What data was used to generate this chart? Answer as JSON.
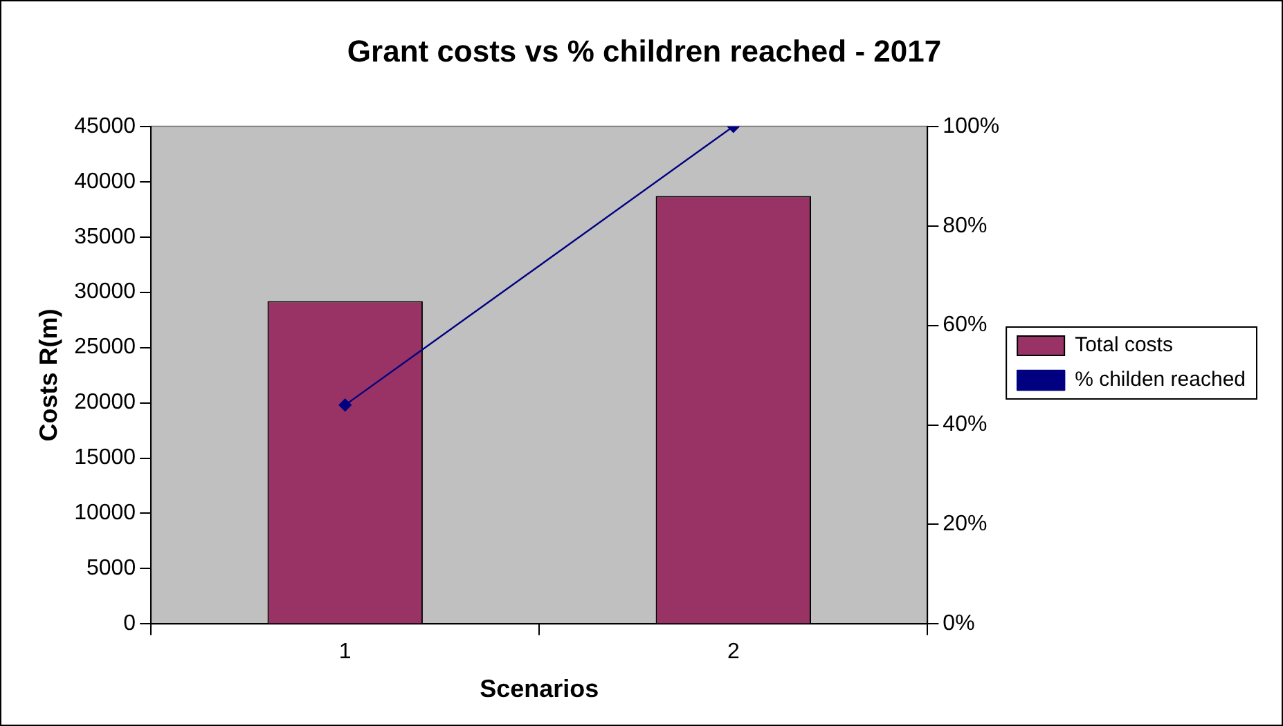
{
  "chart_data": {
    "type": "bar",
    "title": "Grant costs vs % children reached - 2017",
    "xlabel": "Scenarios",
    "ylabel": "Costs R(m)",
    "categories": [
      "1",
      "2"
    ],
    "series": [
      {
        "name": "Total costs",
        "color": "#993366",
        "values": [
          29200,
          38700
        ]
      },
      {
        "name": "% childen reached",
        "type": "line",
        "axis": "y2",
        "color": "#000080",
        "marker": "diamond",
        "values": [
          44,
          100
        ]
      }
    ],
    "ylim": [
      0,
      45000
    ],
    "yticks": [
      0,
      5000,
      10000,
      15000,
      20000,
      25000,
      30000,
      35000,
      40000,
      45000
    ],
    "y2lim": [
      0,
      100
    ],
    "y2ticks": [
      {
        "value": 0,
        "label": "0%"
      },
      {
        "value": 20,
        "label": "20%"
      },
      {
        "value": 40,
        "label": "40%"
      },
      {
        "value": 60,
        "label": "60%"
      },
      {
        "value": 80,
        "label": "80%"
      },
      {
        "value": 100,
        "label": "100%"
      }
    ],
    "grid": false,
    "legend": "right"
  }
}
